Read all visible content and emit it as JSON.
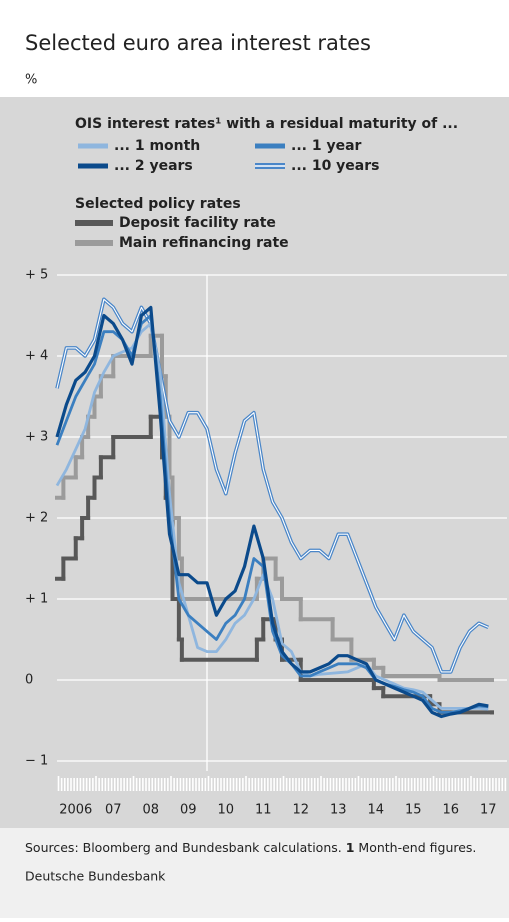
{
  "chart_data": {
    "type": "line",
    "title": "Selected euro area interest rates",
    "unit_label": "%",
    "legend_titles": [
      "OIS interest rates¹ with a residual maturity of ...",
      "Selected policy rates"
    ],
    "xlim": [
      2006,
      2018
    ],
    "ylim": [
      -1,
      5
    ],
    "xgrid": [
      2010
    ],
    "xticks": [
      {
        "value": 2006.5,
        "label": "2006"
      },
      {
        "value": 2007.5,
        "label": "07"
      },
      {
        "value": 2008.5,
        "label": "08"
      },
      {
        "value": 2009.5,
        "label": "09"
      },
      {
        "value": 2010.5,
        "label": "10"
      },
      {
        "value": 2011.5,
        "label": "11"
      },
      {
        "value": 2012.5,
        "label": "12"
      },
      {
        "value": 2013.5,
        "label": "13"
      },
      {
        "value": 2014.5,
        "label": "14"
      },
      {
        "value": 2015.5,
        "label": "15"
      },
      {
        "value": 2016.5,
        "label": "16"
      },
      {
        "value": 2017.5,
        "label": "17"
      }
    ],
    "yticks": [
      {
        "value": 5,
        "label": "+ 5"
      },
      {
        "value": 4,
        "label": "+ 4"
      },
      {
        "value": 3,
        "label": "+ 3"
      },
      {
        "value": 2,
        "label": "+ 2"
      },
      {
        "value": 1,
        "label": "+ 1"
      },
      0,
      {
        "value": -1,
        "label": "− 1"
      }
    ],
    "grid": true,
    "x": [
      2006,
      2006.25,
      2006.5,
      2006.75,
      2007,
      2007.25,
      2007.5,
      2007.75,
      2008,
      2008.25,
      2008.5,
      2008.75,
      2009,
      2009.25,
      2009.5,
      2009.75,
      2010,
      2010.25,
      2010.5,
      2010.75,
      2011,
      2011.25,
      2011.5,
      2011.75,
      2012,
      2012.25,
      2012.5,
      2012.75,
      2013,
      2013.25,
      2013.5,
      2013.75,
      2014,
      2014.25,
      2014.5,
      2014.75,
      2015,
      2015.25,
      2015.5,
      2015.75,
      2016,
      2016.25,
      2016.5,
      2016.75,
      2017,
      2017.25,
      2017.5
    ],
    "series": [
      {
        "name": "... 1 month",
        "color": "#8fb6de",
        "values": [
          2.4,
          2.6,
          2.85,
          3.1,
          3.55,
          3.8,
          4.0,
          4.05,
          4.1,
          4.3,
          4.4,
          3.8,
          2.3,
          1.2,
          0.8,
          0.4,
          0.35,
          0.35,
          0.5,
          0.7,
          0.8,
          1.0,
          1.3,
          1.0,
          0.45,
          0.35,
          0.1,
          0.05,
          0.07,
          0.08,
          0.09,
          0.1,
          0.15,
          0.2,
          0.05,
          0.0,
          -0.05,
          -0.1,
          -0.12,
          -0.15,
          -0.25,
          -0.35,
          -0.35,
          -0.35,
          -0.35,
          -0.35,
          -0.36
        ]
      },
      {
        "name": "... 1 year",
        "color": "#3b7fc0",
        "values": [
          2.9,
          3.2,
          3.5,
          3.7,
          3.9,
          4.3,
          4.3,
          4.2,
          4.0,
          4.4,
          4.5,
          3.5,
          2.0,
          1.0,
          0.8,
          0.7,
          0.6,
          0.5,
          0.7,
          0.8,
          1.0,
          1.5,
          1.4,
          0.6,
          0.3,
          0.2,
          0.05,
          0.05,
          0.1,
          0.15,
          0.2,
          0.2,
          0.2,
          0.15,
          0.0,
          -0.05,
          -0.08,
          -0.12,
          -0.15,
          -0.2,
          -0.35,
          -0.4,
          -0.4,
          -0.38,
          -0.35,
          -0.32,
          -0.33
        ]
      },
      {
        "name": "... 2 years",
        "color": "#0b4a8b",
        "values": [
          3.0,
          3.4,
          3.7,
          3.8,
          4.0,
          4.5,
          4.4,
          4.2,
          3.9,
          4.5,
          4.6,
          3.3,
          1.8,
          1.3,
          1.3,
          1.2,
          1.2,
          0.8,
          1.0,
          1.1,
          1.4,
          1.9,
          1.5,
          0.7,
          0.35,
          0.2,
          0.1,
          0.1,
          0.15,
          0.2,
          0.3,
          0.3,
          0.25,
          0.2,
          0.0,
          -0.05,
          -0.1,
          -0.15,
          -0.2,
          -0.25,
          -0.4,
          -0.45,
          -0.42,
          -0.4,
          -0.35,
          -0.3,
          -0.32
        ]
      },
      {
        "name": "... 10 years",
        "color": "#4a86c8",
        "double": true,
        "values": [
          3.6,
          4.1,
          4.1,
          4.0,
          4.2,
          4.7,
          4.6,
          4.4,
          4.3,
          4.6,
          4.4,
          3.8,
          3.2,
          3.0,
          3.3,
          3.3,
          3.1,
          2.6,
          2.3,
          2.8,
          3.2,
          3.3,
          2.6,
          2.2,
          2.0,
          1.7,
          1.5,
          1.6,
          1.6,
          1.5,
          1.8,
          1.8,
          1.5,
          1.2,
          0.9,
          0.7,
          0.5,
          0.8,
          0.6,
          0.5,
          0.4,
          0.1,
          0.1,
          0.4,
          0.6,
          0.7,
          0.65
        ]
      },
      {
        "name": "Deposit facility rate",
        "color": "#585858",
        "step": true,
        "x": [
          2006,
          2006.17,
          2006.5,
          2006.67,
          2006.83,
          2007,
          2007.17,
          2007.5,
          2008.5,
          2008.8,
          2008.9,
          2009,
          2009.08,
          2009.25,
          2009.33,
          2011.33,
          2011.5,
          2011.83,
          2012,
          2012.5,
          2014.45,
          2014.7,
          2015.95,
          2016.2,
          2017.6
        ],
        "values": [
          1.25,
          1.5,
          1.75,
          2.0,
          2.25,
          2.5,
          2.75,
          3.0,
          3.25,
          2.75,
          2.25,
          2.0,
          1.0,
          0.5,
          0.25,
          0.5,
          0.75,
          0.5,
          0.25,
          0.0,
          -0.1,
          -0.2,
          -0.3,
          -0.4,
          -0.4
        ]
      },
      {
        "name": "Main refinancing rate",
        "color": "#9b9b9b",
        "step": true,
        "x": [
          2006,
          2006.17,
          2006.5,
          2006.67,
          2006.83,
          2007,
          2007.17,
          2007.5,
          2008.5,
          2008.8,
          2008.9,
          2009,
          2009.08,
          2009.25,
          2009.33,
          2011.33,
          2011.5,
          2011.83,
          2012,
          2012.5,
          2013.35,
          2013.85,
          2014.45,
          2014.7,
          2016.2,
          2017.6
        ],
        "values": [
          2.25,
          2.5,
          2.75,
          3.0,
          3.25,
          3.5,
          3.75,
          4.0,
          4.25,
          3.75,
          3.25,
          2.5,
          2.0,
          1.5,
          1.0,
          1.25,
          1.5,
          1.25,
          1.0,
          0.75,
          0.5,
          0.25,
          0.15,
          0.05,
          0.0,
          0.0
        ]
      }
    ],
    "source": "Sources: Bloomberg and Bundesbank calculations.",
    "footnote_marker": "1",
    "footnote": "Month-end figures.",
    "publisher": "Deutsche Bundesbank"
  }
}
